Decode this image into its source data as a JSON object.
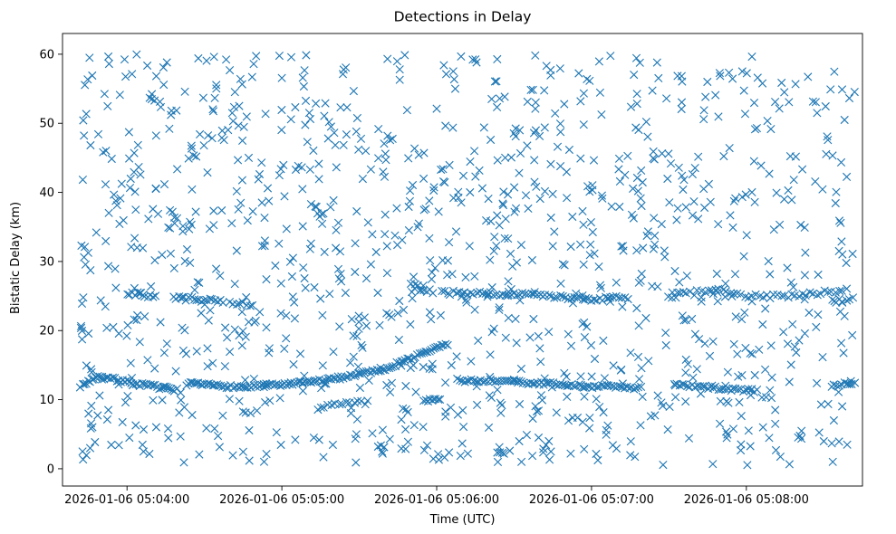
{
  "chart_data": {
    "type": "scatter",
    "title": "Detections in Delay",
    "xlabel": "Time (UTC)",
    "ylabel": "Bistatic Delay (km)",
    "x_tick_labels": [
      "2026-01-06 05:04:00",
      "2026-01-06 05:05:00",
      "2026-01-06 05:06:00",
      "2026-01-06 05:07:00",
      "2026-01-06 05:08:00"
    ],
    "y_ticks": [
      0,
      10,
      20,
      30,
      40,
      50,
      60
    ],
    "xlim": [
      "2026-01-06 05:03:35",
      "2026-01-06 05:08:45"
    ],
    "ylim": [
      -2.5,
      63
    ],
    "marker": "x",
    "grid": false,
    "color": "#1f77b4",
    "tracks": [
      {
        "points": [
          [
            "2026-01-06 05:03:42",
            12.0
          ],
          [
            "2026-01-06 05:03:48",
            13.2
          ],
          [
            "2026-01-06 05:03:56",
            12.9
          ],
          [
            "2026-01-06 05:04:05",
            12.2
          ],
          [
            "2026-01-06 05:04:14",
            11.7
          ],
          [
            "2026-01-06 05:04:20",
            11.4
          ]
        ],
        "step_seconds": 0.8,
        "jitter": 0.25
      },
      {
        "points": [
          [
            "2026-01-06 05:04:23",
            12.3
          ],
          [
            "2026-01-06 05:04:45",
            11.8
          ],
          [
            "2026-01-06 05:05:05",
            12.3
          ],
          [
            "2026-01-06 05:05:20",
            13.0
          ],
          [
            "2026-01-06 05:05:40",
            14.5
          ],
          [
            "2026-01-06 05:05:58",
            17.2
          ],
          [
            "2026-01-06 05:06:05",
            18.2
          ]
        ],
        "step_seconds": 0.8,
        "jitter": 0.25
      },
      {
        "points": [
          [
            "2026-01-06 05:06:08",
            12.8
          ],
          [
            "2026-01-06 05:06:30",
            12.6
          ],
          [
            "2026-01-06 05:06:55",
            12.0
          ],
          [
            "2026-01-06 05:07:20",
            11.7
          ]
        ],
        "step_seconds": 0.9,
        "jitter": 0.25
      },
      {
        "points": [
          [
            "2026-01-06 05:07:32",
            12.1
          ],
          [
            "2026-01-06 05:07:50",
            11.6
          ],
          [
            "2026-01-06 05:08:05",
            11.2
          ]
        ],
        "step_seconds": 1.0,
        "jitter": 0.25
      },
      {
        "points": [
          [
            "2026-01-06 05:08:33",
            12.1
          ],
          [
            "2026-01-06 05:08:43",
            12.4
          ]
        ],
        "step_seconds": 1.0,
        "jitter": 0.25
      },
      {
        "points": [
          [
            "2026-01-06 05:04:00",
            25.5
          ],
          [
            "2026-01-06 05:04:12",
            24.8
          ]
        ],
        "step_seconds": 1.0,
        "jitter": 0.3
      },
      {
        "points": [
          [
            "2026-01-06 05:04:18",
            24.8
          ],
          [
            "2026-01-06 05:04:38",
            24.1
          ]
        ],
        "step_seconds": 1.0,
        "jitter": 0.3
      },
      {
        "points": [
          [
            "2026-01-06 05:04:40",
            24.2
          ],
          [
            "2026-01-06 05:04:50",
            23.5
          ]
        ],
        "step_seconds": 1.2,
        "jitter": 0.3
      },
      {
        "points": [
          [
            "2026-01-06 05:05:50",
            26.5
          ],
          [
            "2026-01-06 05:06:00",
            25.5
          ]
        ],
        "step_seconds": 1.2,
        "jitter": 0.3
      },
      {
        "points": [
          [
            "2026-01-06 05:06:02",
            25.5
          ],
          [
            "2026-01-06 05:06:30",
            25.3
          ],
          [
            "2026-01-06 05:07:00",
            24.5
          ],
          [
            "2026-01-06 05:07:15",
            24.8
          ]
        ],
        "step_seconds": 1.1,
        "jitter": 0.3
      },
      {
        "points": [
          [
            "2026-01-06 05:07:30",
            25.0
          ],
          [
            "2026-01-06 05:07:48",
            25.8
          ],
          [
            "2026-01-06 05:08:05",
            24.8
          ],
          [
            "2026-01-06 05:08:40",
            25.8
          ]
        ],
        "step_seconds": 1.4,
        "jitter": 0.35
      },
      {
        "points": [
          [
            "2026-01-06 05:08:33",
            24.3
          ],
          [
            "2026-01-06 05:08:43",
            24.6
          ]
        ],
        "step_seconds": 1.4,
        "jitter": 0.3
      },
      {
        "points": [
          [
            "2026-01-06 05:05:55",
            9.8
          ],
          [
            "2026-01-06 05:06:02",
            10.2
          ]
        ],
        "step_seconds": 0.8,
        "jitter": 0.25
      },
      {
        "points": [
          [
            "2026-01-06 05:05:15",
            9.0
          ],
          [
            "2026-01-06 05:05:25",
            9.5
          ]
        ],
        "step_seconds": 1.5,
        "jitter": 0.3
      },
      {
        "points": [
          [
            "2026-01-06 05:05:25",
            9.5
          ],
          [
            "2026-01-06 05:05:35",
            9.6
          ]
        ],
        "step_seconds": 1.5,
        "jitter": 0.3
      }
    ],
    "noise": {
      "seed": 7,
      "count": 1150,
      "x_range": [
        "2026-01-06 05:03:42",
        "2026-01-06 05:08:43"
      ],
      "y_range": [
        0.5,
        60
      ]
    }
  }
}
